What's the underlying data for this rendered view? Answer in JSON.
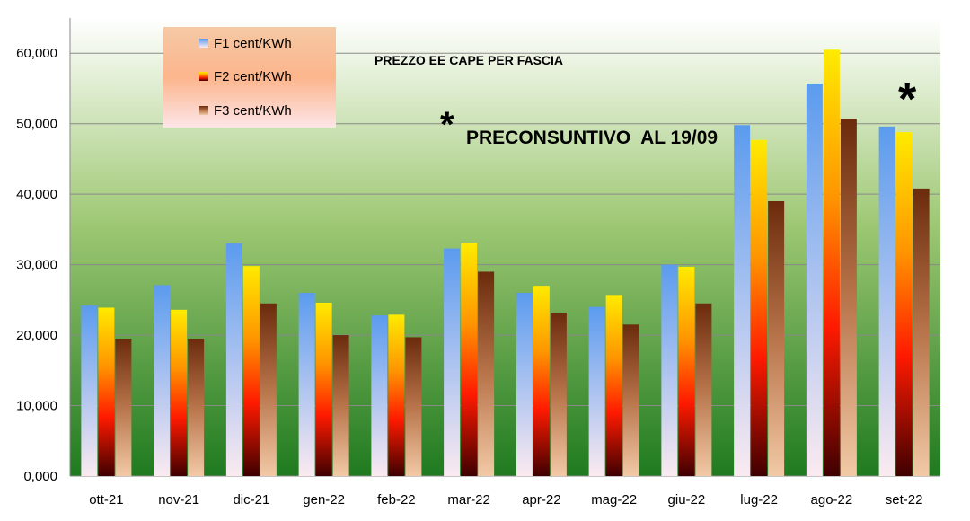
{
  "chart_data": {
    "type": "bar",
    "title": "PREZZO EE CAPE PER FASCIA",
    "annotation": "PRECONSUNTIVO  AL 19/09",
    "annotation_marker": "*",
    "categories": [
      "ott-21",
      "nov-21",
      "dic-21",
      "gen-22",
      "feb-22",
      "mar-22",
      "apr-22",
      "mag-22",
      "giu-22",
      "lug-22",
      "ago-22",
      "set-22"
    ],
    "series": [
      {
        "name": "F1 cent/KWh",
        "values": [
          24.2,
          27.1,
          33.0,
          26.0,
          22.8,
          32.3,
          26.0,
          24.0,
          30.0,
          49.8,
          55.7,
          49.6
        ]
      },
      {
        "name": "F2 cent/KWh",
        "values": [
          23.9,
          23.6,
          29.8,
          24.6,
          22.9,
          33.1,
          27.0,
          25.7,
          29.7,
          47.7,
          60.5,
          48.8
        ]
      },
      {
        "name": "F3 cent/KWh",
        "values": [
          19.5,
          19.5,
          24.5,
          20.0,
          19.7,
          29.0,
          23.2,
          21.5,
          24.5,
          39.0,
          50.7,
          40.8
        ]
      }
    ],
    "yticks": [
      "0,000",
      "10,000",
      "20,000",
      "30,000",
      "40,000",
      "50,000",
      "60,000"
    ],
    "ylim": [
      0,
      65
    ],
    "grid": true,
    "legend_position": "top-left",
    "colors": {
      "background_top": "#ffffff",
      "background_mid": "#9ec873",
      "background_bottom": "#1f7a1f",
      "grid": "#8a8a8a",
      "f1_top": "#5b9bef",
      "f1_bottom": "#fbeaf0",
      "f2_top": "#ffeb00",
      "f2_mid1": "#ff9400",
      "f2_mid2": "#ff1a00",
      "f2_bottom": "#3f0000",
      "f3_top": "#6b2b0c",
      "f3_mid": "#b8744a",
      "f3_bottom": "#f2c9a6",
      "legend_top": "#f5c9a5",
      "legend_mid": "#fcb58c",
      "legend_bottom": "#fde5e8"
    }
  }
}
